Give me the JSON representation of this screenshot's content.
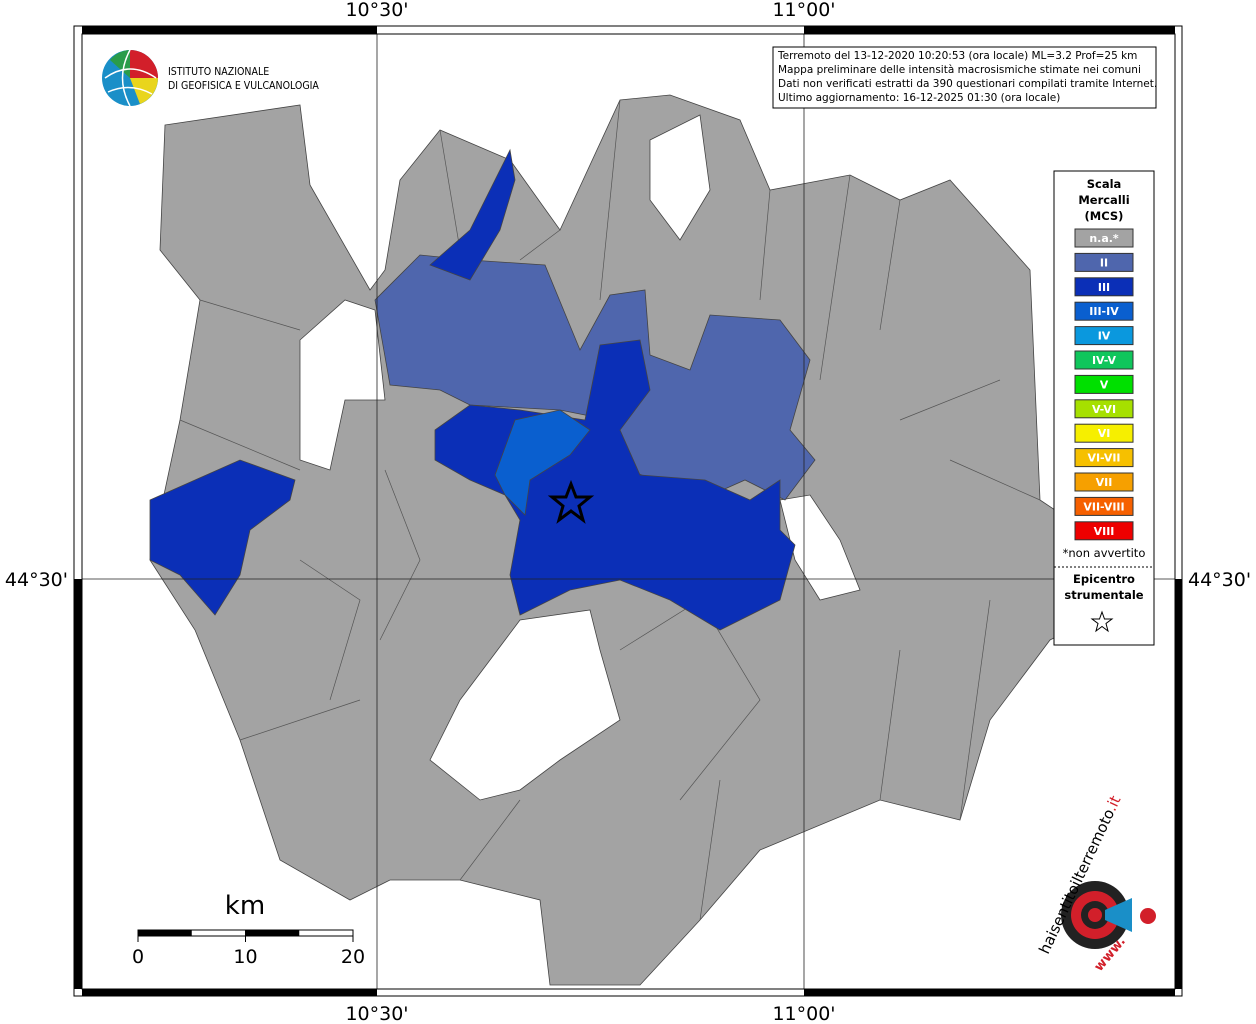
{
  "map": {
    "graticule": {
      "lon": [
        "10°30'",
        "11°00'"
      ],
      "lat": [
        "44°30'"
      ]
    },
    "logo": {
      "line1": "ISTITUTO NAZIONALE",
      "line2": "DI GEOFISICA E VULCANOLOGIA"
    },
    "info": [
      "Terremoto del 13-12-2020 10:20:53 (ora locale) ML=3.2 Prof=25 km",
      "Mappa preliminare delle intensità macrosismiche stimate nei comuni",
      "Dati non verificati estratti da 390 questionari compilati tramite Internet.",
      "Ultimo aggiornamento: 16-12-2025 01:30 (ora locale)"
    ],
    "legend": {
      "title": [
        "Scala",
        "Mercalli",
        "(MCS)"
      ],
      "items": [
        {
          "name": "n.a.*",
          "color": "#a3a3a3"
        },
        {
          "name": "II",
          "color": "#4f66ad"
        },
        {
          "name": "III",
          "color": "#0b2fb7"
        },
        {
          "name": "III-IV",
          "color": "#0a5fcf"
        },
        {
          "name": "IV",
          "color": "#0a98de"
        },
        {
          "name": "IV-V",
          "color": "#10c65c"
        },
        {
          "name": "V",
          "color": "#00e000"
        },
        {
          "name": "V-VI",
          "color": "#a6e000"
        },
        {
          "name": "VI",
          "color": "#f6ef00"
        },
        {
          "name": "VI-VII",
          "color": "#f6c000"
        },
        {
          "name": "VII",
          "color": "#f6a000"
        },
        {
          "name": "VII-VIII",
          "color": "#f66000"
        },
        {
          "name": "VIII",
          "color": "#ee0000"
        }
      ],
      "note": "*non avvertito",
      "epicenter": [
        "Epicentro",
        "strumentale"
      ]
    },
    "scale": {
      "unit": "km",
      "ticks": [
        0,
        10,
        20
      ]
    },
    "site": {
      "name": "haisentitoilterremoto",
      "tld": ".it",
      "prefix": "www."
    }
  }
}
